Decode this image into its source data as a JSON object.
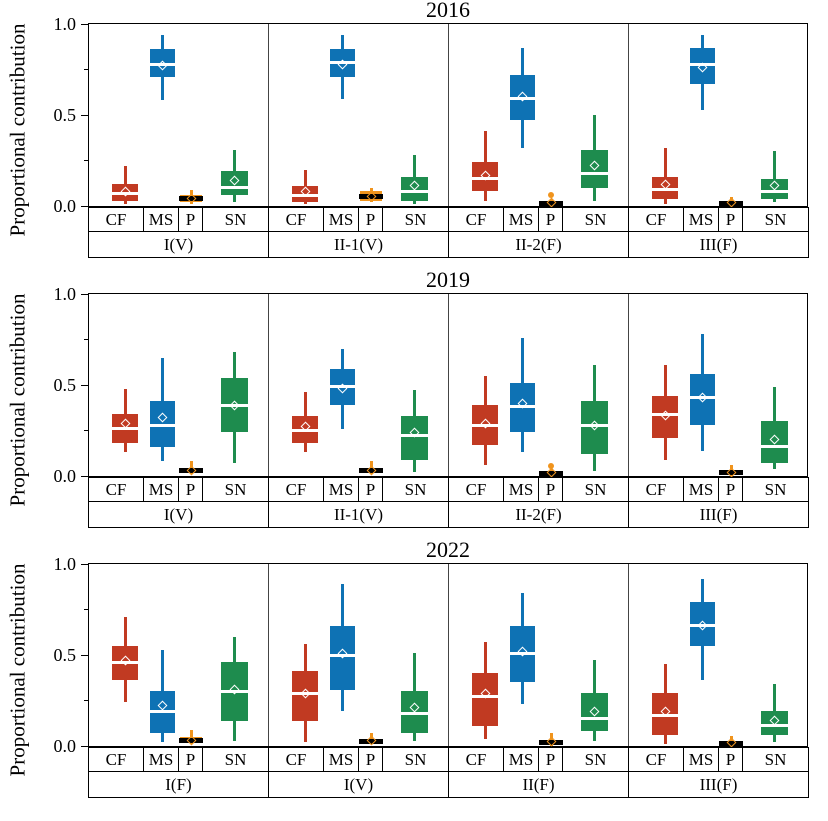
{
  "figure": {
    "y_axis": {
      "label": "Proportional contribution",
      "major_ticks": [
        {
          "value": 0.0,
          "label": "0.0"
        },
        {
          "value": 0.5,
          "label": "0.5"
        },
        {
          "value": 1.0,
          "label": "1.0"
        }
      ],
      "minor_ticks": [
        0.25,
        0.75
      ],
      "range": [
        0,
        1
      ]
    },
    "categories": [
      "CF",
      "MS",
      "P",
      "SN"
    ],
    "colors": {
      "CF": "#c13a22",
      "MS": "#0e72b4",
      "P": "#f0941d",
      "SN": "#1e8c4e",
      "median": "#ffffff",
      "p_median": "#000000"
    }
  },
  "chart_data": [
    {
      "type": "boxplot",
      "title": "2016",
      "ylabel": "Proportional contribution",
      "ylim": [
        0,
        1
      ],
      "categories": [
        "CF",
        "MS",
        "P",
        "SN"
      ],
      "groups": [
        {
          "label": "I(V)",
          "boxes": [
            {
              "cat": "CF",
              "lo": 0.01,
              "q1": 0.03,
              "med": 0.07,
              "q3": 0.12,
              "hi": 0.22,
              "mean": 0.08
            },
            {
              "cat": "MS",
              "lo": 0.58,
              "q1": 0.71,
              "med": 0.78,
              "q3": 0.86,
              "hi": 0.94,
              "mean": 0.77
            },
            {
              "cat": "P",
              "lo": 0.01,
              "q1": 0.02,
              "med": 0.04,
              "q3": 0.06,
              "hi": 0.09,
              "mean": 0.04
            },
            {
              "cat": "SN",
              "lo": 0.02,
              "q1": 0.06,
              "med": 0.1,
              "q3": 0.19,
              "hi": 0.31,
              "mean": 0.14
            }
          ]
        },
        {
          "label": "II-1(V)",
          "boxes": [
            {
              "cat": "CF",
              "lo": 0.01,
              "q1": 0.02,
              "med": 0.06,
              "q3": 0.11,
              "hi": 0.2,
              "mean": 0.08
            },
            {
              "cat": "MS",
              "lo": 0.59,
              "q1": 0.71,
              "med": 0.79,
              "q3": 0.86,
              "hi": 0.94,
              "mean": 0.78
            },
            {
              "cat": "P",
              "lo": 0.02,
              "q1": 0.03,
              "med": 0.05,
              "q3": 0.08,
              "hi": 0.1,
              "mean": 0.05
            },
            {
              "cat": "SN",
              "lo": 0.01,
              "q1": 0.03,
              "med": 0.08,
              "q3": 0.16,
              "hi": 0.28,
              "mean": 0.11
            }
          ]
        },
        {
          "label": "II-2(F)",
          "boxes": [
            {
              "cat": "CF",
              "lo": 0.03,
              "q1": 0.08,
              "med": 0.15,
              "q3": 0.24,
              "hi": 0.41,
              "mean": 0.17
            },
            {
              "cat": "MS",
              "lo": 0.32,
              "q1": 0.47,
              "med": 0.59,
              "q3": 0.72,
              "hi": 0.87,
              "mean": 0.6
            },
            {
              "cat": "P",
              "lo": 0.0,
              "q1": 0.005,
              "med": 0.015,
              "q3": 0.03,
              "hi": 0.04,
              "mean": 0.02,
              "outliers": [
                0.06
              ]
            },
            {
              "cat": "SN",
              "lo": 0.03,
              "q1": 0.1,
              "med": 0.18,
              "q3": 0.31,
              "hi": 0.5,
              "mean": 0.22
            }
          ]
        },
        {
          "label": "III(F)",
          "boxes": [
            {
              "cat": "CF",
              "lo": 0.01,
              "q1": 0.04,
              "med": 0.09,
              "q3": 0.16,
              "hi": 0.32,
              "mean": 0.12
            },
            {
              "cat": "MS",
              "lo": 0.53,
              "q1": 0.67,
              "med": 0.78,
              "q3": 0.87,
              "hi": 0.94,
              "mean": 0.76
            },
            {
              "cat": "P",
              "lo": 0.0,
              "q1": 0.005,
              "med": 0.015,
              "q3": 0.025,
              "hi": 0.05,
              "mean": 0.02
            },
            {
              "cat": "SN",
              "lo": 0.02,
              "q1": 0.04,
              "med": 0.08,
              "q3": 0.15,
              "hi": 0.3,
              "mean": 0.11
            }
          ]
        }
      ]
    },
    {
      "type": "boxplot",
      "title": "2019",
      "ylabel": "Proportional contribution",
      "ylim": [
        0,
        1
      ],
      "categories": [
        "CF",
        "MS",
        "P",
        "SN"
      ],
      "groups": [
        {
          "label": "I(V)",
          "boxes": [
            {
              "cat": "CF",
              "lo": 0.13,
              "q1": 0.18,
              "med": 0.26,
              "q3": 0.34,
              "hi": 0.48,
              "mean": 0.29
            },
            {
              "cat": "MS",
              "lo": 0.08,
              "q1": 0.16,
              "med": 0.28,
              "q3": 0.41,
              "hi": 0.65,
              "mean": 0.32
            },
            {
              "cat": "P",
              "lo": 0.01,
              "q1": 0.015,
              "med": 0.03,
              "q3": 0.045,
              "hi": 0.08,
              "mean": 0.03
            },
            {
              "cat": "SN",
              "lo": 0.07,
              "q1": 0.24,
              "med": 0.39,
              "q3": 0.54,
              "hi": 0.68,
              "mean": 0.39
            }
          ]
        },
        {
          "label": "II-1(V)",
          "boxes": [
            {
              "cat": "CF",
              "lo": 0.13,
              "q1": 0.18,
              "med": 0.25,
              "q3": 0.33,
              "hi": 0.46,
              "mean": 0.27
            },
            {
              "cat": "MS",
              "lo": 0.26,
              "q1": 0.39,
              "med": 0.49,
              "q3": 0.59,
              "hi": 0.7,
              "mean": 0.48
            },
            {
              "cat": "P",
              "lo": 0.01,
              "q1": 0.015,
              "med": 0.03,
              "q3": 0.045,
              "hi": 0.08,
              "mean": 0.03
            },
            {
              "cat": "SN",
              "lo": 0.02,
              "q1": 0.09,
              "med": 0.22,
              "q3": 0.33,
              "hi": 0.47,
              "mean": 0.24
            }
          ]
        },
        {
          "label": "II-2(F)",
          "boxes": [
            {
              "cat": "CF",
              "lo": 0.06,
              "q1": 0.17,
              "med": 0.28,
              "q3": 0.39,
              "hi": 0.55,
              "mean": 0.29
            },
            {
              "cat": "MS",
              "lo": 0.13,
              "q1": 0.24,
              "med": 0.38,
              "q3": 0.51,
              "hi": 0.76,
              "mean": 0.4
            },
            {
              "cat": "P",
              "lo": 0.0,
              "q1": 0.005,
              "med": 0.015,
              "q3": 0.03,
              "hi": 0.04,
              "mean": 0.02,
              "outliers": [
                0.055
              ]
            },
            {
              "cat": "SN",
              "lo": 0.03,
              "q1": 0.12,
              "med": 0.28,
              "q3": 0.41,
              "hi": 0.61,
              "mean": 0.28
            }
          ]
        },
        {
          "label": "III(F)",
          "boxes": [
            {
              "cat": "CF",
              "lo": 0.09,
              "q1": 0.21,
              "med": 0.34,
              "q3": 0.44,
              "hi": 0.61,
              "mean": 0.33
            },
            {
              "cat": "MS",
              "lo": 0.14,
              "q1": 0.28,
              "med": 0.43,
              "q3": 0.56,
              "hi": 0.78,
              "mean": 0.43
            },
            {
              "cat": "P",
              "lo": 0.0,
              "q1": 0.01,
              "med": 0.02,
              "q3": 0.03,
              "hi": 0.06,
              "mean": 0.02
            },
            {
              "cat": "SN",
              "lo": 0.04,
              "q1": 0.07,
              "med": 0.16,
              "q3": 0.3,
              "hi": 0.49,
              "mean": 0.2
            }
          ]
        }
      ]
    },
    {
      "type": "boxplot",
      "title": "2022",
      "ylabel": "Proportional contribution",
      "ylim": [
        0,
        1
      ],
      "categories": [
        "CF",
        "MS",
        "P",
        "SN"
      ],
      "groups": [
        {
          "label": "I(F)",
          "boxes": [
            {
              "cat": "CF",
              "lo": 0.24,
              "q1": 0.36,
              "med": 0.46,
              "q3": 0.55,
              "hi": 0.71,
              "mean": 0.47
            },
            {
              "cat": "MS",
              "lo": 0.02,
              "q1": 0.07,
              "med": 0.19,
              "q3": 0.3,
              "hi": 0.53,
              "mean": 0.22
            },
            {
              "cat": "P",
              "lo": 0.01,
              "q1": 0.015,
              "med": 0.03,
              "q3": 0.05,
              "hi": 0.09,
              "mean": 0.03
            },
            {
              "cat": "SN",
              "lo": 0.03,
              "q1": 0.14,
              "med": 0.3,
              "q3": 0.46,
              "hi": 0.6,
              "mean": 0.31
            }
          ]
        },
        {
          "label": "I(V)",
          "boxes": [
            {
              "cat": "CF",
              "lo": 0.02,
              "q1": 0.14,
              "med": 0.29,
              "q3": 0.41,
              "hi": 0.56,
              "mean": 0.29
            },
            {
              "cat": "MS",
              "lo": 0.19,
              "q1": 0.31,
              "med": 0.5,
              "q3": 0.66,
              "hi": 0.89,
              "mean": 0.51
            },
            {
              "cat": "P",
              "lo": 0.01,
              "q1": 0.015,
              "med": 0.025,
              "q3": 0.04,
              "hi": 0.07,
              "mean": 0.03
            },
            {
              "cat": "SN",
              "lo": 0.03,
              "q1": 0.07,
              "med": 0.18,
              "q3": 0.3,
              "hi": 0.51,
              "mean": 0.21
            }
          ]
        },
        {
          "label": "II(F)",
          "boxes": [
            {
              "cat": "CF",
              "lo": 0.04,
              "q1": 0.11,
              "med": 0.27,
              "q3": 0.4,
              "hi": 0.57,
              "mean": 0.29
            },
            {
              "cat": "MS",
              "lo": 0.23,
              "q1": 0.35,
              "med": 0.51,
              "q3": 0.66,
              "hi": 0.84,
              "mean": 0.52
            },
            {
              "cat": "P",
              "lo": 0.0,
              "q1": 0.01,
              "med": 0.02,
              "q3": 0.035,
              "hi": 0.07,
              "mean": 0.025
            },
            {
              "cat": "SN",
              "lo": 0.03,
              "q1": 0.08,
              "med": 0.15,
              "q3": 0.29,
              "hi": 0.47,
              "mean": 0.19
            }
          ]
        },
        {
          "label": "III(F)",
          "boxes": [
            {
              "cat": "CF",
              "lo": 0.01,
              "q1": 0.06,
              "med": 0.17,
              "q3": 0.29,
              "hi": 0.45,
              "mean": 0.19
            },
            {
              "cat": "MS",
              "lo": 0.36,
              "q1": 0.55,
              "med": 0.66,
              "q3": 0.79,
              "hi": 0.92,
              "mean": 0.66
            },
            {
              "cat": "P",
              "lo": 0.0,
              "q1": 0.01,
              "med": 0.015,
              "q3": 0.03,
              "hi": 0.055,
              "mean": 0.02
            },
            {
              "cat": "SN",
              "lo": 0.02,
              "q1": 0.06,
              "med": 0.11,
              "q3": 0.19,
              "hi": 0.34,
              "mean": 0.14
            }
          ]
        }
      ]
    }
  ]
}
